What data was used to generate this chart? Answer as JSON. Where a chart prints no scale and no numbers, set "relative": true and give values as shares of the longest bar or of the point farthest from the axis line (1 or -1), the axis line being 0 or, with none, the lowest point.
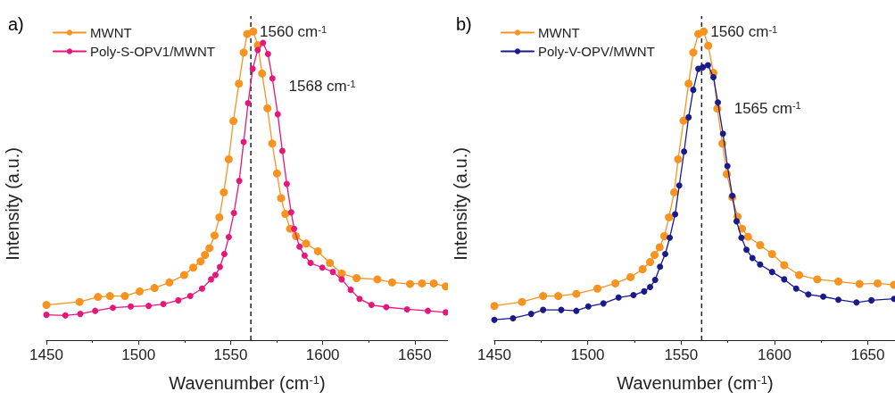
{
  "chart_data": [
    {
      "type": "line",
      "title": "a)",
      "xlabel": "Wavenumber (cm$^{-1}$)",
      "ylabel": "Intensity (a.u.)",
      "relative": true,
      "xlim": [
        1450,
        1668
      ],
      "xticks": [
        1450,
        1500,
        1550,
        1600,
        1650
      ],
      "legend": "top left",
      "marker": "circle",
      "grid": false,
      "ref_lines": [
        {
          "axis": "x",
          "value": 1561,
          "color": "#222222",
          "line_style": "dashed"
        }
      ],
      "annotations": [
        {
          "text": "1560 cm$^{-1}$",
          "x": 1560,
          "y": 1.0
        },
        {
          "text": "1568 cm$^{-1}$",
          "x": 1568,
          "y": 0.963
        }
      ],
      "series": [
        {
          "name": "MWNT",
          "color": "#f7931e",
          "x": [
            1450,
            1468,
            1478,
            1484.5,
            1492.6,
            1500.6,
            1508.7,
            1516.8,
            1524.8,
            1529.7,
            1533.7,
            1536.1,
            1538.5,
            1541.3,
            1543.9,
            1546.3,
            1549,
            1551.5,
            1554.5,
            1557.1,
            1559,
            1562.3,
            1564.8,
            1567.1,
            1570,
            1572.6,
            1575.2,
            1577.4,
            1579.7,
            1582.3,
            1585.5,
            1591,
            1597.4,
            1603.9,
            1610.3,
            1618.4,
            1629.7,
            1637.7,
            1647.4,
            1653.9,
            1660.3,
            1666.8
          ],
          "values": [
            0.114,
            0.124,
            0.14,
            0.143,
            0.143,
            0.158,
            0.169,
            0.187,
            0.211,
            0.235,
            0.255,
            0.276,
            0.298,
            0.339,
            0.398,
            0.479,
            0.586,
            0.71,
            0.831,
            0.932,
            0.992,
            1.0,
            0.955,
            0.864,
            0.751,
            0.637,
            0.54,
            0.46,
            0.409,
            0.361,
            0.337,
            0.313,
            0.288,
            0.25,
            0.216,
            0.201,
            0.197,
            0.187,
            0.182,
            0.184,
            0.184,
            0.174
          ]
        },
        {
          "name": "Poly-S-OPV1/MWNT",
          "color": "#e6177a",
          "x": [
            1450,
            1460.3,
            1468.4,
            1476.5,
            1486.1,
            1495.8,
            1505.5,
            1513.5,
            1521.6,
            1528.1,
            1534.5,
            1539.4,
            1541.8,
            1544.2,
            1546.6,
            1549,
            1551.8,
            1554.7,
            1557.1,
            1559.5,
            1562,
            1564.7,
            1567.6,
            1570.3,
            1572.7,
            1575.6,
            1578.1,
            1580.5,
            1582.9,
            1584.5,
            1587.4,
            1590.2,
            1593.4,
            1599.8,
            1605.5,
            1610.3,
            1615.2,
            1620,
            1626.5,
            1634.5,
            1645.8,
            1657.1,
            1666.8
          ],
          "values": [
            0.082,
            0.08,
            0.085,
            0.095,
            0.105,
            0.109,
            0.111,
            0.117,
            0.129,
            0.143,
            0.167,
            0.197,
            0.211,
            0.237,
            0.279,
            0.334,
            0.412,
            0.516,
            0.642,
            0.768,
            0.879,
            0.94,
            0.963,
            0.927,
            0.848,
            0.732,
            0.613,
            0.506,
            0.414,
            0.361,
            0.303,
            0.274,
            0.25,
            0.235,
            0.221,
            0.197,
            0.163,
            0.134,
            0.114,
            0.107,
            0.1,
            0.095,
            0.09
          ]
        }
      ]
    },
    {
      "type": "line",
      "title": "b)",
      "xlabel": "Wavenumber (cm$^{-1}$)",
      "ylabel": "Intensity (a.u.)",
      "relative": true,
      "xlim": [
        1450,
        1665
      ],
      "xticks": [
        1450,
        1500,
        1550,
        1600,
        1650
      ],
      "legend": "top left",
      "marker": "circle",
      "grid": false,
      "ref_lines": [
        {
          "axis": "x",
          "value": 1561,
          "color": "#222222",
          "line_style": "dashed"
        }
      ],
      "annotations": [
        {
          "text": "1560 cm$^{-1}$",
          "x": 1560,
          "y": 1.0
        },
        {
          "text": "1565 cm$^{-1}$",
          "x": 1565,
          "y": 0.891
        }
      ],
      "series": [
        {
          "name": "MWNT",
          "color": "#f7931e",
          "x": [
            1450,
            1464.8,
            1476.1,
            1484.2,
            1493.9,
            1505.2,
            1514.8,
            1522.9,
            1529.4,
            1533.4,
            1535.8,
            1538.5,
            1541,
            1543.5,
            1546.3,
            1548.4,
            1551.3,
            1554,
            1556.5,
            1559.2,
            1562.1,
            1564.5,
            1567.3,
            1569.4,
            1572.1,
            1574.5,
            1577.4,
            1580.2,
            1582.6,
            1585.8,
            1592.3,
            1598.7,
            1605.2,
            1613.2,
            1622.9,
            1634.2,
            1645.5,
            1655.2,
            1664
          ],
          "values": [
            0.111,
            0.124,
            0.143,
            0.143,
            0.15,
            0.167,
            0.184,
            0.204,
            0.23,
            0.253,
            0.276,
            0.301,
            0.337,
            0.398,
            0.479,
            0.586,
            0.711,
            0.831,
            0.932,
            0.992,
            1.0,
            0.954,
            0.866,
            0.75,
            0.637,
            0.538,
            0.463,
            0.4,
            0.361,
            0.335,
            0.308,
            0.279,
            0.243,
            0.211,
            0.197,
            0.19,
            0.182,
            0.184,
            0.179
          ]
        },
        {
          "name": "Poly-V-OPV/MWNT",
          "color": "#1a1a8c",
          "x": [
            1450,
            1460,
            1469.7,
            1476.1,
            1485.8,
            1493.9,
            1500.3,
            1508.4,
            1516.5,
            1524.5,
            1530.2,
            1533.4,
            1536.1,
            1538.7,
            1541.5,
            1543.9,
            1546.8,
            1549,
            1551.6,
            1554,
            1556.5,
            1559.2,
            1561.6,
            1564.4,
            1567.3,
            1569.7,
            1572.4,
            1574.8,
            1577.4,
            1579.7,
            1582.3,
            1585,
            1588.2,
            1592.3,
            1598.7,
            1605.2,
            1611.6,
            1618.1,
            1626.1,
            1634.2,
            1643.9,
            1651.9,
            1664
          ],
          "values": [
            0.066,
            0.071,
            0.085,
            0.098,
            0.098,
            0.095,
            0.109,
            0.119,
            0.138,
            0.146,
            0.158,
            0.172,
            0.195,
            0.238,
            0.279,
            0.332,
            0.408,
            0.501,
            0.611,
            0.722,
            0.811,
            0.879,
            0.884,
            0.891,
            0.852,
            0.77,
            0.669,
            0.564,
            0.468,
            0.385,
            0.332,
            0.293,
            0.266,
            0.245,
            0.221,
            0.197,
            0.167,
            0.148,
            0.141,
            0.131,
            0.122,
            0.129,
            0.134
          ]
        }
      ]
    }
  ]
}
